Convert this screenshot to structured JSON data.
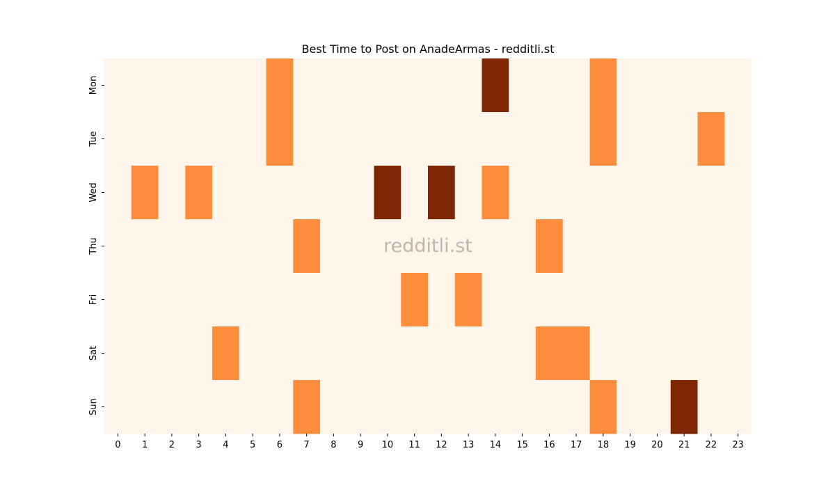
{
  "chart_data": {
    "type": "heatmap",
    "title": "Best Time to Post on AnadeArmas - redditli.st",
    "watermark": "redditli.st",
    "xlabel": "",
    "ylabel": "",
    "x_categories": [
      "0",
      "1",
      "2",
      "3",
      "4",
      "5",
      "6",
      "7",
      "8",
      "9",
      "10",
      "11",
      "12",
      "13",
      "14",
      "15",
      "16",
      "17",
      "18",
      "19",
      "20",
      "21",
      "22",
      "23"
    ],
    "y_categories": [
      "Mon",
      "Tue",
      "Wed",
      "Thu",
      "Fri",
      "Sat",
      "Sun"
    ],
    "values": [
      [
        0,
        0,
        0,
        0,
        0,
        0,
        1,
        0,
        0,
        0,
        0,
        0,
        0,
        0,
        2,
        0,
        0,
        0,
        1,
        0,
        0,
        0,
        0,
        0
      ],
      [
        0,
        0,
        0,
        0,
        0,
        0,
        1,
        0,
        0,
        0,
        0,
        0,
        0,
        0,
        0,
        0,
        0,
        0,
        1,
        0,
        0,
        0,
        1,
        0
      ],
      [
        0,
        1,
        0,
        1,
        0,
        0,
        0,
        0,
        0,
        0,
        2,
        0,
        2,
        0,
        1,
        0,
        0,
        0,
        0,
        0,
        0,
        0,
        0,
        0
      ],
      [
        0,
        0,
        0,
        0,
        0,
        0,
        0,
        1,
        0,
        0,
        0,
        0,
        0,
        0,
        0,
        0,
        1,
        0,
        0,
        0,
        0,
        0,
        0,
        0
      ],
      [
        0,
        0,
        0,
        0,
        0,
        0,
        0,
        0,
        0,
        0,
        0,
        1,
        0,
        1,
        0,
        0,
        0,
        0,
        0,
        0,
        0,
        0,
        0,
        0
      ],
      [
        0,
        0,
        0,
        0,
        1,
        0,
        0,
        0,
        0,
        0,
        0,
        0,
        0,
        0,
        0,
        0,
        1,
        1,
        0,
        0,
        0,
        0,
        0,
        0
      ],
      [
        0,
        0,
        0,
        0,
        0,
        0,
        0,
        1,
        0,
        0,
        0,
        0,
        0,
        0,
        0,
        0,
        0,
        0,
        1,
        0,
        0,
        2,
        0,
        0
      ]
    ],
    "colormap": [
      "#fff5eb",
      "#fd8d3c",
      "#7f2704"
    ],
    "grid": false,
    "legend": "none"
  }
}
